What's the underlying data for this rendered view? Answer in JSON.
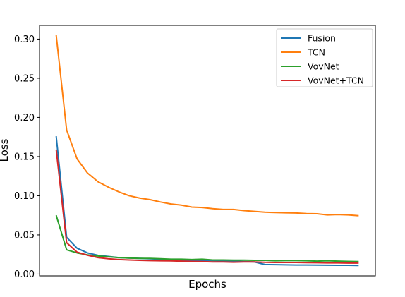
{
  "chart_data": {
    "type": "line",
    "xlabel": "Epochs",
    "ylabel": "Loss",
    "ylim": [
      -0.0023,
      0.3175
    ],
    "xlim": [
      -1.6,
      30.6
    ],
    "x_ticks_visible": false,
    "yticks": [
      0.0,
      0.05,
      0.1,
      0.15,
      0.2,
      0.25,
      0.3
    ],
    "ytick_labels": [
      "0.00",
      "0.05",
      "0.10",
      "0.15",
      "0.20",
      "0.25",
      "0.30"
    ],
    "grid": false,
    "legend_position": "top-right",
    "x": [
      0,
      1,
      2,
      3,
      4,
      5,
      6,
      7,
      8,
      9,
      10,
      11,
      12,
      13,
      14,
      15,
      16,
      17,
      18,
      19,
      20,
      21,
      22,
      23,
      24,
      25,
      26,
      27,
      28,
      29
    ],
    "series": [
      {
        "name": "Fusion",
        "color": "#1f77b4",
        "values": [
          0.176,
          0.047,
          0.033,
          0.027,
          0.024,
          0.0225,
          0.021,
          0.0205,
          0.02,
          0.0195,
          0.019,
          0.0185,
          0.018,
          0.0175,
          0.0175,
          0.0172,
          0.017,
          0.0165,
          0.016,
          0.0155,
          0.0122,
          0.012,
          0.0118,
          0.0116,
          0.0115,
          0.0114,
          0.0113,
          0.0112,
          0.0112,
          0.011
        ]
      },
      {
        "name": "TCN",
        "color": "#ff7f0e",
        "values": [
          0.305,
          0.184,
          0.147,
          0.129,
          0.118,
          0.111,
          0.105,
          0.1,
          0.097,
          0.095,
          0.092,
          0.0895,
          0.088,
          0.0855,
          0.085,
          0.0835,
          0.0825,
          0.0825,
          0.081,
          0.08,
          0.079,
          0.0785,
          0.0782,
          0.078,
          0.0772,
          0.077,
          0.0755,
          0.076,
          0.0755,
          0.0745
        ]
      },
      {
        "name": "VovNet",
        "color": "#2ca02c",
        "values": [
          0.075,
          0.031,
          0.027,
          0.0245,
          0.023,
          0.022,
          0.021,
          0.0205,
          0.02,
          0.02,
          0.0195,
          0.019,
          0.019,
          0.0185,
          0.019,
          0.018,
          0.018,
          0.0178,
          0.0178,
          0.0175,
          0.0175,
          0.017,
          0.0172,
          0.0172,
          0.017,
          0.0165,
          0.017,
          0.0165,
          0.0162,
          0.016
        ]
      },
      {
        "name": "VovNet+TCN",
        "color": "#d62728",
        "values": [
          0.159,
          0.04,
          0.028,
          0.024,
          0.021,
          0.0195,
          0.0185,
          0.018,
          0.0175,
          0.0172,
          0.017,
          0.0168,
          0.0165,
          0.0162,
          0.016,
          0.0155,
          0.0155,
          0.0152,
          0.0155,
          0.0155,
          0.015,
          0.0148,
          0.0148,
          0.0148,
          0.0146,
          0.0145,
          0.0142,
          0.0142,
          0.014,
          0.014
        ]
      }
    ]
  }
}
